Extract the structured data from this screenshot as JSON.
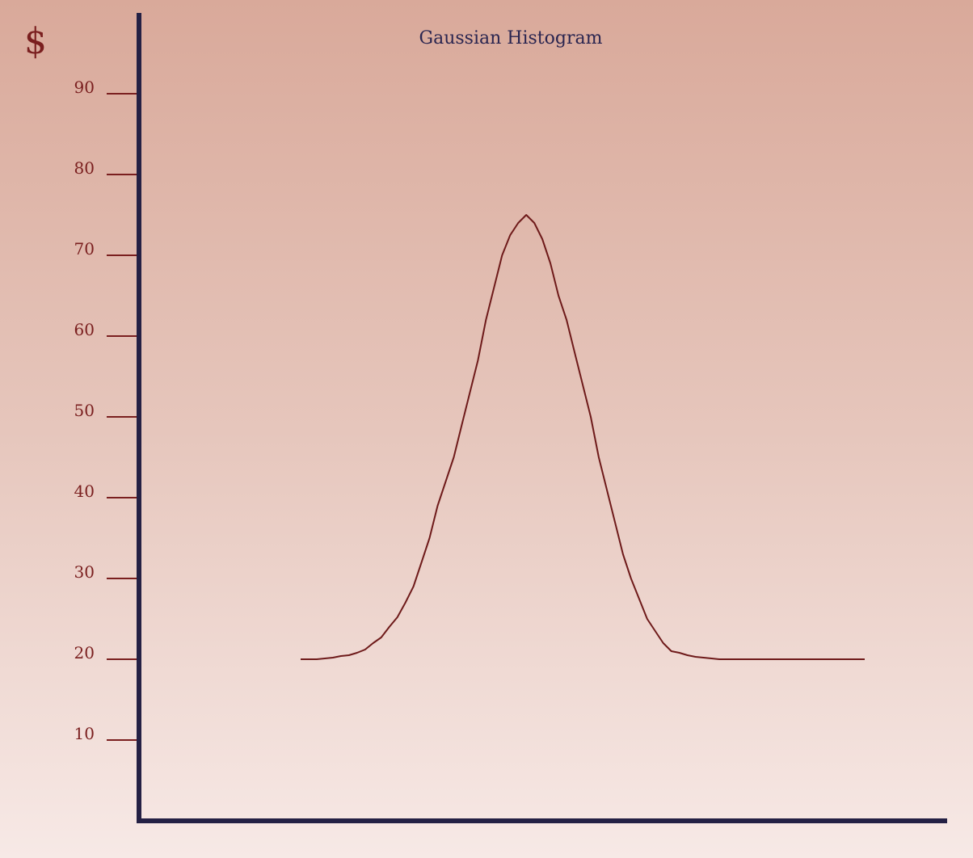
{
  "chart_data": {
    "type": "line",
    "title": "Gaussian Histogram",
    "currency_symbol": "$",
    "xlabel": "",
    "ylabel": "",
    "ylim": [
      0,
      100
    ],
    "y_ticks": [
      10,
      20,
      30,
      40,
      50,
      60,
      70,
      80,
      90
    ],
    "y_tick_labels": [
      "10",
      "20",
      "30",
      "40",
      "50",
      "60",
      "70",
      "80",
      "90"
    ],
    "x_ticks_shown": false,
    "grid": false,
    "legend": "none",
    "series": [
      {
        "color": "#6e1a1a",
        "x": [
          0,
          10,
          20,
          30,
          40,
          50,
          60,
          70,
          80,
          90,
          100,
          110,
          120,
          130,
          140,
          150,
          160,
          170,
          180,
          190,
          200,
          210,
          220,
          230,
          240,
          250,
          260,
          270,
          280,
          290,
          300,
          310,
          320,
          330,
          340,
          350,
          360,
          370,
          380,
          390,
          400,
          410,
          420,
          430,
          440,
          450,
          460,
          470,
          480,
          490,
          500,
          510,
          520,
          530,
          540,
          550,
          560,
          570,
          580,
          590,
          600,
          610,
          620,
          630,
          640,
          650,
          660,
          670,
          680,
          690,
          700
        ],
        "values": [
          20.0,
          20.0,
          20.0,
          20.1,
          20.2,
          20.4,
          20.5,
          20.8,
          21.2,
          22.0,
          22.7,
          24.0,
          25.2,
          27.0,
          29.0,
          32.0,
          35.0,
          39.0,
          42.0,
          45.0,
          49.0,
          53.0,
          57.0,
          62.0,
          66.0,
          70.0,
          72.5,
          74.0,
          75.0,
          74.0,
          72.0,
          69.0,
          65.0,
          62.0,
          58.0,
          54.0,
          50.0,
          45.0,
          41.0,
          37.0,
          33.0,
          30.0,
          27.5,
          25.0,
          23.5,
          22.0,
          21.0,
          20.8,
          20.5,
          20.3,
          20.2,
          20.1,
          20.0,
          20.0,
          20.0,
          20.0,
          20.0,
          20.0,
          20.0,
          20.0,
          20.0,
          20.0,
          20.0,
          20.0,
          20.0,
          20.0,
          20.0,
          20.0,
          20.0,
          20.0,
          20.0
        ]
      }
    ]
  }
}
